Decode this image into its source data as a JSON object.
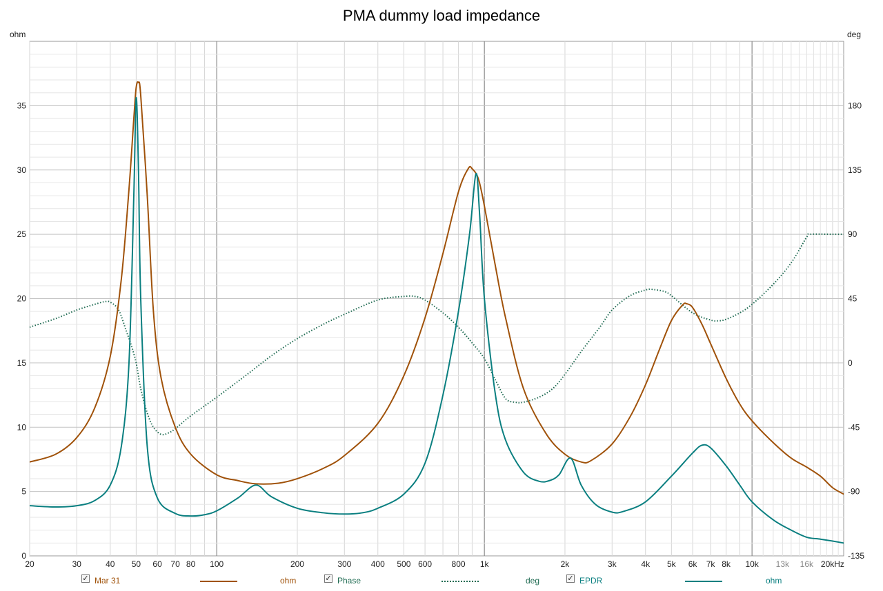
{
  "chart_data": {
    "type": "line",
    "title": "PMA dummy load impedance",
    "xscale": "log",
    "xlim": [
      20,
      22000
    ],
    "y_left": {
      "label": "ohm",
      "lim": [
        0,
        40
      ],
      "ticks": [
        0,
        5,
        10,
        15,
        20,
        25,
        30,
        35
      ]
    },
    "y_right": {
      "label": "deg",
      "lim": [
        -135,
        225
      ],
      "ticks": [
        -135,
        -90,
        -45,
        0,
        45,
        90,
        135,
        180
      ]
    },
    "x_ticks": [
      {
        "v": 20,
        "label": "20",
        "strong": true
      },
      {
        "v": 30,
        "label": "30",
        "strong": true
      },
      {
        "v": 40,
        "label": "40",
        "strong": true
      },
      {
        "v": 50,
        "label": "50",
        "strong": true
      },
      {
        "v": 60,
        "label": "60",
        "strong": true
      },
      {
        "v": 70,
        "label": "70",
        "strong": true
      },
      {
        "v": 80,
        "label": "80",
        "strong": true
      },
      {
        "v": 100,
        "label": "100",
        "strong": true
      },
      {
        "v": 200,
        "label": "200",
        "strong": true
      },
      {
        "v": 300,
        "label": "300",
        "strong": true
      },
      {
        "v": 400,
        "label": "400",
        "strong": true
      },
      {
        "v": 500,
        "label": "500",
        "strong": true
      },
      {
        "v": 600,
        "label": "600",
        "strong": true
      },
      {
        "v": 800,
        "label": "800",
        "strong": true
      },
      {
        "v": 1000,
        "label": "1k",
        "strong": true
      },
      {
        "v": 2000,
        "label": "2k",
        "strong": true
      },
      {
        "v": 3000,
        "label": "3k",
        "strong": true
      },
      {
        "v": 4000,
        "label": "4k",
        "strong": true
      },
      {
        "v": 5000,
        "label": "5k",
        "strong": true
      },
      {
        "v": 6000,
        "label": "6k",
        "strong": true
      },
      {
        "v": 7000,
        "label": "7k",
        "strong": true
      },
      {
        "v": 8000,
        "label": "8k",
        "strong": true
      },
      {
        "v": 10000,
        "label": "10k",
        "strong": true
      },
      {
        "v": 13000,
        "label": "13k",
        "strong": false
      },
      {
        "v": 16000,
        "label": "16k",
        "strong": false
      },
      {
        "v": 20000,
        "label": "20kHz",
        "strong": true
      }
    ],
    "grid": true,
    "series": [
      {
        "name": "Mar 31",
        "unit": "ohm",
        "axis": "left",
        "color": "#a0520a",
        "style": "solid",
        "points": [
          [
            20,
            7.3
          ],
          [
            25,
            7.9
          ],
          [
            30,
            9.2
          ],
          [
            35,
            11.5
          ],
          [
            40,
            15.5
          ],
          [
            44,
            21.5
          ],
          [
            47,
            28.5
          ],
          [
            49,
            34
          ],
          [
            50,
            36.4
          ],
          [
            51,
            36.8
          ],
          [
            52,
            35.8
          ],
          [
            55,
            28
          ],
          [
            58,
            19
          ],
          [
            62,
            13.8
          ],
          [
            70,
            10
          ],
          [
            80,
            7.9
          ],
          [
            100,
            6.3
          ],
          [
            120,
            5.85
          ],
          [
            140,
            5.6
          ],
          [
            170,
            5.65
          ],
          [
            200,
            6.0
          ],
          [
            250,
            6.8
          ],
          [
            300,
            7.8
          ],
          [
            400,
            10.3
          ],
          [
            500,
            14
          ],
          [
            600,
            18.5
          ],
          [
            700,
            23.5
          ],
          [
            800,
            28.3
          ],
          [
            870,
            30.1
          ],
          [
            900,
            30.1
          ],
          [
            950,
            29.3
          ],
          [
            1000,
            27.2
          ],
          [
            1100,
            22.5
          ],
          [
            1200,
            18.5
          ],
          [
            1400,
            13
          ],
          [
            1700,
            9.5
          ],
          [
            2000,
            7.9
          ],
          [
            2300,
            7.3
          ],
          [
            2500,
            7.4
          ],
          [
            3000,
            8.7
          ],
          [
            3500,
            10.8
          ],
          [
            4000,
            13.3
          ],
          [
            4500,
            16
          ],
          [
            5000,
            18.3
          ],
          [
            5500,
            19.5
          ],
          [
            5700,
            19.6
          ],
          [
            6000,
            19.3
          ],
          [
            6500,
            18
          ],
          [
            7000,
            16.5
          ],
          [
            8000,
            13.8
          ],
          [
            9000,
            11.8
          ],
          [
            10000,
            10.5
          ],
          [
            12000,
            8.8
          ],
          [
            14000,
            7.6
          ],
          [
            16000,
            6.9
          ],
          [
            18000,
            6.2
          ],
          [
            20000,
            5.3
          ],
          [
            22000,
            4.8
          ]
        ]
      },
      {
        "name": "Phase",
        "unit": "deg",
        "axis": "right",
        "color": "#1f6b52",
        "style": "dotted",
        "points": [
          [
            20,
            25
          ],
          [
            25,
            31
          ],
          [
            30,
            37
          ],
          [
            35,
            41
          ],
          [
            38,
            42.8
          ],
          [
            40,
            42.5
          ],
          [
            43,
            37
          ],
          [
            46,
            22
          ],
          [
            48,
            12
          ],
          [
            50,
            0
          ],
          [
            52,
            -18
          ],
          [
            55,
            -35
          ],
          [
            58,
            -45
          ],
          [
            62,
            -50
          ],
          [
            66,
            -49
          ],
          [
            70,
            -46
          ],
          [
            80,
            -37
          ],
          [
            100,
            -24
          ],
          [
            130,
            -8
          ],
          [
            160,
            5
          ],
          [
            200,
            17
          ],
          [
            250,
            27
          ],
          [
            300,
            34
          ],
          [
            400,
            44
          ],
          [
            500,
            46.5
          ],
          [
            550,
            46.5
          ],
          [
            600,
            44
          ],
          [
            700,
            35
          ],
          [
            800,
            25
          ],
          [
            900,
            14
          ],
          [
            1000,
            3
          ],
          [
            1100,
            -12
          ],
          [
            1200,
            -25
          ],
          [
            1300,
            -27.5
          ],
          [
            1400,
            -27.5
          ],
          [
            1600,
            -24
          ],
          [
            1800,
            -18
          ],
          [
            2000,
            -8
          ],
          [
            2300,
            8
          ],
          [
            2700,
            25
          ],
          [
            3000,
            37
          ],
          [
            3500,
            47
          ],
          [
            4000,
            51
          ],
          [
            4200,
            51.5
          ],
          [
            4700,
            50
          ],
          [
            5000,
            47
          ],
          [
            6000,
            35
          ],
          [
            7000,
            30
          ],
          [
            7500,
            29.5
          ],
          [
            8000,
            30.5
          ],
          [
            9000,
            35
          ],
          [
            10000,
            41
          ],
          [
            12000,
            55
          ],
          [
            14000,
            70
          ],
          [
            16000,
            88
          ],
          [
            16500,
            90
          ],
          [
            20000,
            90
          ],
          [
            22000,
            90
          ]
        ]
      },
      {
        "name": "EPDR",
        "unit": "ohm",
        "axis": "left",
        "color": "#0a7f80",
        "style": "solid",
        "points": [
          [
            20,
            3.9
          ],
          [
            25,
            3.8
          ],
          [
            30,
            3.9
          ],
          [
            35,
            4.3
          ],
          [
            40,
            5.5
          ],
          [
            44,
            8.5
          ],
          [
            47,
            15
          ],
          [
            49,
            28
          ],
          [
            50,
            35.6
          ],
          [
            51,
            30
          ],
          [
            52,
            20
          ],
          [
            55,
            8.5
          ],
          [
            60,
            4.5
          ],
          [
            70,
            3.3
          ],
          [
            80,
            3.1
          ],
          [
            90,
            3.2
          ],
          [
            100,
            3.5
          ],
          [
            120,
            4.5
          ],
          [
            140,
            5.5
          ],
          [
            160,
            4.6
          ],
          [
            200,
            3.7
          ],
          [
            250,
            3.35
          ],
          [
            300,
            3.25
          ],
          [
            350,
            3.35
          ],
          [
            400,
            3.7
          ],
          [
            500,
            4.8
          ],
          [
            600,
            7.2
          ],
          [
            700,
            12.5
          ],
          [
            800,
            19
          ],
          [
            880,
            25
          ],
          [
            930,
            29.7
          ],
          [
            960,
            26.5
          ],
          [
            1000,
            20
          ],
          [
            1100,
            12.5
          ],
          [
            1200,
            9
          ],
          [
            1400,
            6.5
          ],
          [
            1600,
            5.8
          ],
          [
            1750,
            5.85
          ],
          [
            1900,
            6.3
          ],
          [
            2100,
            7.6
          ],
          [
            2300,
            5.5
          ],
          [
            2600,
            4
          ],
          [
            3000,
            3.4
          ],
          [
            3300,
            3.45
          ],
          [
            4000,
            4.2
          ],
          [
            5000,
            6.2
          ],
          [
            6000,
            8
          ],
          [
            6500,
            8.6
          ],
          [
            7000,
            8.4
          ],
          [
            8000,
            7
          ],
          [
            9000,
            5.5
          ],
          [
            10000,
            4.2
          ],
          [
            12000,
            2.8
          ],
          [
            14000,
            2
          ],
          [
            16000,
            1.45
          ],
          [
            18000,
            1.3
          ],
          [
            20000,
            1.15
          ],
          [
            22000,
            1.0
          ]
        ]
      }
    ]
  },
  "legend": [
    {
      "checked": "✓",
      "label": "Mar 31",
      "unit": "ohm",
      "color": "#a0520a",
      "style": "solid"
    },
    {
      "checked": "✓",
      "label": "Phase",
      "unit": "deg",
      "color": "#1f6b52",
      "style": "dotted"
    },
    {
      "checked": "✓",
      "label": "EPDR",
      "unit": "ohm",
      "color": "#0a7f80",
      "style": "solid"
    }
  ]
}
